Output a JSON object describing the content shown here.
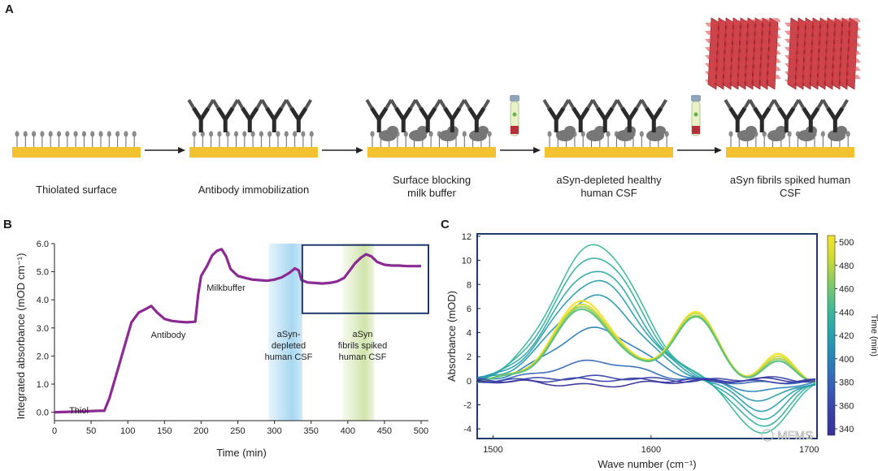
{
  "panel_a": {
    "letter": "A",
    "steps": [
      {
        "label_lines": [
          "Thiolated surface"
        ]
      },
      {
        "label_lines": [
          "Antibody immobilization"
        ]
      },
      {
        "label_lines": [
          "Surface blocking",
          "milk buffer"
        ]
      },
      {
        "label_lines": [
          "aSyn-depleted  healthy",
          "human CSF"
        ]
      },
      {
        "label_lines": [
          "aSyn fibrils spiked human",
          "CSF"
        ]
      }
    ],
    "colors": {
      "surface": "#f2c230",
      "antibody": "#2b2b2b",
      "milk": "#777777",
      "fibril": "#c0262d"
    }
  },
  "panel_b": {
    "letter": "B",
    "colors": {
      "line": "#8b2a92",
      "depleted_band": "#9fd3f0",
      "spiked_band": "#cfe3a8",
      "box": "#1f3a6b"
    },
    "annotations": {
      "thiol": [
        "Thiol"
      ],
      "antibody": [
        "Antibody"
      ],
      "milk": [
        "Milkbuffer"
      ],
      "depleted": [
        "aSyn-",
        "depleted",
        "human CSF"
      ],
      "spiked": [
        "aSyn",
        "fibrils spiked",
        "human CSF"
      ]
    }
  },
  "panel_c": {
    "letter": "C",
    "colorbar": {
      "label": "Time (min)",
      "ticks": [
        "500",
        "480",
        "460",
        "440",
        "420",
        "400",
        "380",
        "360",
        "340"
      ],
      "colors": [
        "#f5e52a",
        "#c8d93a",
        "#7ec86a",
        "#3db89a",
        "#26a0b0",
        "#2a80b8",
        "#3860b8",
        "#3a40a8",
        "#36309a"
      ]
    },
    "watermark": "MFMS"
  },
  "chart_data": [
    {
      "type": "line",
      "xlabel": "Time (min)",
      "ylabel": "Integrated absorbance (mOD cm⁻¹)",
      "xlim": [
        0,
        510
      ],
      "ylim": [
        -0.3,
        6.0
      ],
      "xticks": [
        "0",
        "50",
        "100",
        "150",
        "200",
        "250",
        "300",
        "350",
        "400",
        "450",
        "500"
      ],
      "yticks": [
        "0.0",
        "1.0",
        "2.0",
        "3.0",
        "4.0",
        "5.0",
        "6.0"
      ],
      "series": [
        {
          "x": [
            0,
            30,
            60,
            68,
            75,
            85,
            95,
            105,
            115,
            125,
            132,
            140,
            150,
            160,
            170,
            180,
            192,
            196,
            200,
            208,
            215,
            222,
            228,
            234,
            240,
            250,
            260,
            270,
            280,
            290,
            300,
            310,
            320,
            328,
            333,
            337,
            345,
            355,
            365,
            375,
            385,
            395,
            400,
            410,
            418,
            425,
            432,
            440,
            450,
            460,
            470,
            480,
            490,
            500
          ],
          "y": [
            0.0,
            0.02,
            0.05,
            0.05,
            0.5,
            1.4,
            2.3,
            3.2,
            3.55,
            3.68,
            3.78,
            3.55,
            3.32,
            3.25,
            3.22,
            3.2,
            3.22,
            4.2,
            4.85,
            5.2,
            5.58,
            5.75,
            5.8,
            5.55,
            5.1,
            4.85,
            4.78,
            4.72,
            4.7,
            4.68,
            4.72,
            4.8,
            4.95,
            5.12,
            5.05,
            4.7,
            4.62,
            4.6,
            4.58,
            4.6,
            4.65,
            4.78,
            4.95,
            5.3,
            5.5,
            5.62,
            5.55,
            5.35,
            5.25,
            5.22,
            5.22,
            5.2,
            5.2,
            5.2
          ]
        }
      ],
      "bands": [
        {
          "x": [
            292,
            338
          ]
        },
        {
          "x": [
            393,
            436
          ]
        }
      ],
      "box": {
        "x": [
          338,
          510
        ],
        "y": [
          3.52,
          5.95
        ]
      }
    },
    {
      "type": "line",
      "xlabel": "Wave number (cm⁻¹)",
      "ylabel": "Absorbance (mOD)",
      "xlim": [
        1490,
        1705
      ],
      "ylim": [
        -4.8,
        12.2
      ],
      "xticks": [
        "1500",
        "1600",
        "1700"
      ],
      "yticks": [
        "12",
        "10",
        "8",
        "6",
        "4",
        "2",
        "0",
        "-2",
        "-4"
      ],
      "series": [
        {
          "peak_amplitude": 11.3,
          "shoulder": 0,
          "tail": -4.5,
          "color": "#3db89a"
        },
        {
          "peak_amplitude": 10.3,
          "shoulder": 0,
          "tail": -3.8,
          "color": "#36b0a0"
        },
        {
          "peak_amplitude": 9.2,
          "shoulder": 0,
          "tail": -3.1,
          "color": "#2fa8a8"
        },
        {
          "peak_amplitude": 8.3,
          "shoulder": 0,
          "tail": -2.4,
          "color": "#2aa0ac"
        },
        {
          "peak_amplitude": 7.0,
          "shoulder": 0,
          "tail": -1.6,
          "color": "#2898b0"
        },
        {
          "peak_amplitude": 4.3,
          "shoulder": 0,
          "tail": -0.9,
          "color": "#2a80b8"
        },
        {
          "peak_amplitude": 1.6,
          "shoulder": 0,
          "tail": -0.2,
          "color": "#3568b8"
        },
        {
          "peak_amplitude": 6.5,
          "shoulder": 5.7,
          "tail": 2.0,
          "color": "#f2e12e"
        },
        {
          "peak_amplitude": 6.2,
          "shoulder": 5.6,
          "tail": 1.8,
          "color": "#d4db38"
        },
        {
          "peak_amplitude": 6.0,
          "shoulder": 5.4,
          "tail": 1.6,
          "color": "#9fd05a"
        },
        {
          "peak_amplitude": 5.8,
          "shoulder": 5.3,
          "tail": 1.4,
          "color": "#5cc07a"
        },
        {
          "peak_amplitude": 0.3,
          "shoulder": 0,
          "tail": 0.2,
          "color": "#3a48a8"
        },
        {
          "peak_amplitude": -0.4,
          "shoulder": 0,
          "tail": 0.1,
          "color": "#36309a"
        },
        {
          "peak_amplitude": 0.1,
          "shoulder": 0,
          "tail": -0.1,
          "color": "#3a40a8"
        }
      ]
    }
  ]
}
